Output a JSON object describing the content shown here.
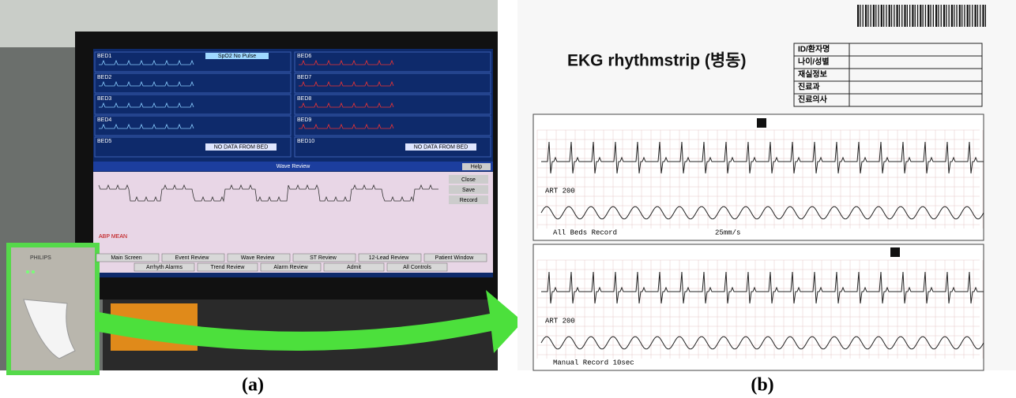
{
  "panel_a": {
    "label": "(a)",
    "monitor": {
      "beds_left": [
        "BED1",
        "BED2",
        "BED3",
        "BED4",
        "BED5"
      ],
      "beds_right": [
        "BED6",
        "BED7",
        "BED8",
        "BED9",
        "BED10"
      ],
      "alarm": "SpO2  No Pulse",
      "no_data": "NO DATA FROM BED",
      "window_title": "Wave Review",
      "side_buttons": [
        "Close",
        "Save",
        "Record"
      ],
      "help": "Help",
      "channel": "ABP MEAN",
      "bottom_buttons": [
        "Main Screen",
        "Event Review",
        "Wave Review",
        "ST Review",
        "12-Lead Review",
        "Patient Window",
        "Arrhyth Alarms",
        "Trend Review",
        "Alarm Review",
        "Admit",
        "All Controls"
      ]
    },
    "printer_brand": "PHILIPS"
  },
  "panel_b": {
    "label": "(b)",
    "title": "EKG rhythmstrip (병동)",
    "form_fields": [
      "ID/환자명",
      "나이/성별",
      "재실정보",
      "진료과",
      "진료의사"
    ],
    "strips": [
      {
        "channel": "ART 200",
        "footer": "All Beds Record",
        "speed": "25mm/s"
      },
      {
        "channel": "ART 200",
        "footer": "Manual Record 10sec"
      }
    ]
  }
}
